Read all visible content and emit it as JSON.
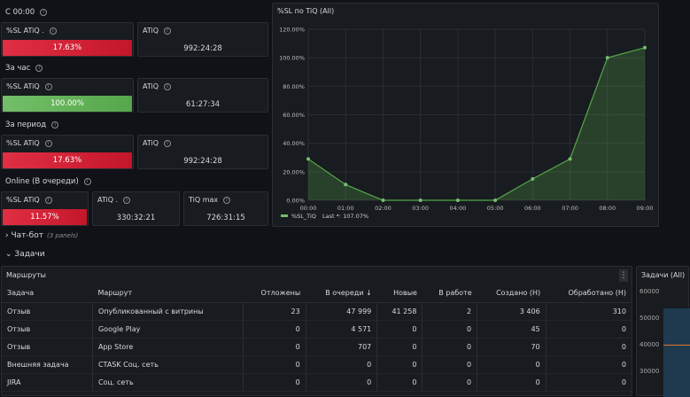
{
  "rows": {
    "since_midnight": "С 00:00",
    "last_hour": "За час",
    "period": "За период",
    "online": "Online (В очереди)"
  },
  "stats": {
    "r1": {
      "sl_label": "%SL ATiQ .",
      "sl_value": "17.63%",
      "atiq_label": "ATiQ",
      "atiq_value": "992:24:28"
    },
    "r2": {
      "sl_label": "%SL ATiQ",
      "sl_value": "100.00%",
      "atiq_label": "ATiQ",
      "atiq_value": "61:27:34"
    },
    "r3": {
      "sl_label": "%SL ATiQ",
      "sl_value": "17.63%",
      "atiq_label": "ATiQ",
      "atiq_value": "992:24:28"
    },
    "r4": {
      "sl_label": "%SL ATiQ",
      "sl_value": "11.57%",
      "atiq_label": "ATiQ .",
      "atiq_value": "330:32:21",
      "tiqmax_label": "TiQ max",
      "tiqmax_value": "726:31:15"
    }
  },
  "colors": {
    "red": "#e02f44",
    "green": "#73bf69",
    "line": "#56a64b"
  },
  "chart_data": {
    "type": "area",
    "title": "%SL по TiQ (All)",
    "x": [
      "00:00",
      "01:00",
      "02:00",
      "03:00",
      "04:00",
      "05:00",
      "06:00",
      "07:00",
      "08:00",
      "09:00"
    ],
    "series": [
      {
        "name": "%SL_TiQ",
        "values": [
          29,
          11,
          0,
          0,
          0,
          0,
          15,
          29,
          100,
          107.07
        ]
      }
    ],
    "y_ticks": [
      "0.00%",
      "20.00%",
      "40.00%",
      "60.00%",
      "80.00%",
      "100.00%",
      "120.00%"
    ],
    "ylim": [
      0,
      120
    ],
    "legend": "%SL_TiQ",
    "legend_last": "Last *: 107.07%"
  },
  "sections": {
    "chatbot": "Чат-бот",
    "chatbot_count": "(3 panels)",
    "tasks": "Задачи"
  },
  "routes": {
    "title": "Маршруты",
    "columns": [
      "Задача",
      "Маршрут",
      "Отложены",
      "В очереди ↓",
      "Новые",
      "В работе",
      "Создано (Н)",
      "Обработано (Н)"
    ],
    "rows": [
      [
        "Отзыв",
        "Опубликованный с витрины",
        "23",
        "47 999",
        "41 258",
        "2",
        "3 406",
        "310"
      ],
      [
        "Отзыв",
        "Google Play",
        "0",
        "4 571",
        "0",
        "0",
        "45",
        "0"
      ],
      [
        "Отзыв",
        "App Store",
        "0",
        "707",
        "0",
        "0",
        "70",
        "0"
      ],
      [
        "Внешняя задача",
        "CTASK Соц. сеть",
        "0",
        "0",
        "0",
        "0",
        "0",
        "0"
      ],
      [
        "JIRA",
        "Соц. сеть",
        "0",
        "0",
        "0",
        "0",
        "0",
        "0"
      ]
    ]
  },
  "tasks_panel": {
    "title": "Задачи (All)",
    "ticks": [
      "60000",
      "50000",
      "40000",
      "30000"
    ]
  }
}
